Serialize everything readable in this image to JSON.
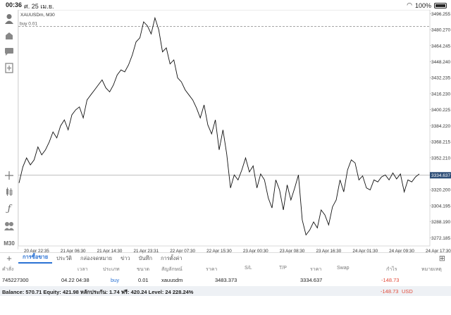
{
  "status": {
    "time": "00:36",
    "date": "ศ. 25 เม.ย.",
    "battery": "100%"
  },
  "chart": {
    "symbol_label": "XAUUSDm, M30",
    "order_line_label": "buy 0.01",
    "price_labels": [
      "3496.255",
      "3480.270",
      "3464.245",
      "3448.240",
      "3432.235",
      "3416.230",
      "3400.225",
      "3384.220",
      "3368.215",
      "3352.210",
      "3320.200",
      "3304.195",
      "3288.190",
      "3272.185"
    ],
    "current_price": "3334.637",
    "time_labels": [
      "20 Apr 22:35",
      "21 Apr 06:30",
      "21 Apr 14:30",
      "21 Apr 23:31",
      "22 Apr 07:30",
      "22 Apr 15:30",
      "23 Apr 00:30",
      "23 Apr 08:30",
      "23 Apr 16:30",
      "24 Apr 01:30",
      "24 Apr 09:30",
      "24 Apr 17:30"
    ],
    "price_series": [
      3327,
      3343,
      3352,
      3345,
      3350,
      3363,
      3355,
      3360,
      3368,
      3378,
      3372,
      3384,
      3390,
      3380,
      3395,
      3400,
      3403,
      3392,
      3410,
      3415,
      3420,
      3425,
      3430,
      3422,
      3418,
      3425,
      3435,
      3440,
      3438,
      3445,
      3455,
      3468,
      3472,
      3488,
      3484,
      3476,
      3492,
      3480,
      3458,
      3462,
      3446,
      3450,
      3432,
      3428,
      3420,
      3415,
      3410,
      3402,
      3392,
      3405,
      3385,
      3376,
      3390,
      3360,
      3380,
      3356,
      3322,
      3335,
      3330,
      3340,
      3352,
      3338,
      3344,
      3322,
      3336,
      3330,
      3312,
      3302,
      3330,
      3320,
      3300,
      3325,
      3310,
      3322,
      3335,
      3290,
      3275,
      3280,
      3288,
      3282,
      3300,
      3295,
      3285,
      3303,
      3310,
      3330,
      3318,
      3340,
      3350,
      3347,
      3330,
      3334,
      3322,
      3320,
      3330,
      3328,
      3333,
      3335,
      3330,
      3337,
      3331,
      3336,
      3318,
      3330,
      3328,
      3333,
      3336
    ],
    "buy_price": 3483.373
  },
  "tabs": [
    "การซื้อขาย",
    "ประวัติ",
    "กล่องจดหมาย",
    "ข่าว",
    "บันทึก",
    "การตั้งค่า"
  ],
  "table": {
    "headers": [
      "คำสั่ง",
      "เวลา",
      "ประเภท",
      "ขนาด",
      "สัญลักษณ์",
      "ราคา",
      "S/L",
      "T/P",
      "ราคา",
      "Swap",
      "กำไร",
      "หมายเหตุ"
    ],
    "row": {
      "order": "745227300",
      "time": "04.22 04:38",
      "type": "buy",
      "size": "0.01",
      "symbol": "xauusdm",
      "open_price": "3483.373",
      "price": "3334.637",
      "profit": "-148.73"
    }
  },
  "balance": {
    "text": "Balance: 570.71  Equity: 421.98  หลักประกัน: 1.74  ฟรี: 420.24  Level: 24 228.24%",
    "profit": "-148.73",
    "currency": "USD"
  },
  "colors": {
    "accent": "#2a72d4",
    "negative": "#e24b3a",
    "price_tag": "#2f4f78"
  }
}
